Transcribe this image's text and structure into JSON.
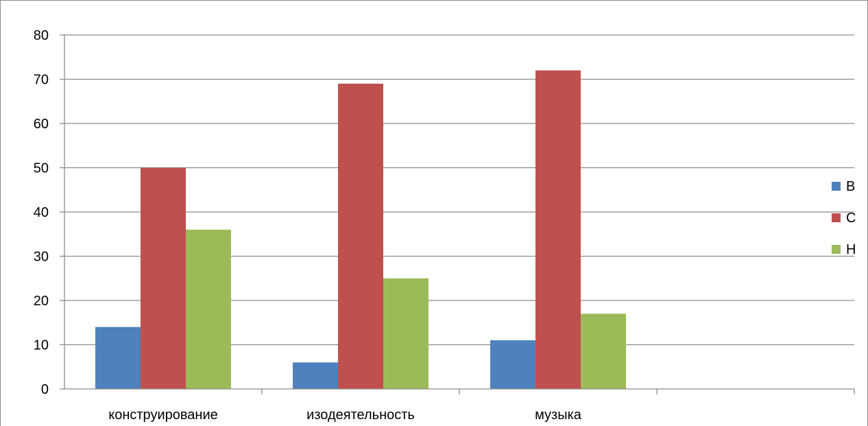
{
  "chart_data": {
    "type": "bar",
    "title": "",
    "xlabel": "",
    "ylabel": "",
    "categories": [
      "конструирование",
      "изодеятельность",
      "музыка",
      ""
    ],
    "series": [
      {
        "name": "В",
        "values": [
          14,
          6,
          11,
          null
        ],
        "color": "#4F81BD"
      },
      {
        "name": "С",
        "values": [
          50,
          69,
          72,
          null
        ],
        "color": "#C0504D"
      },
      {
        "name": "Н",
        "values": [
          36,
          25,
          17,
          null
        ],
        "color": "#9BBB59"
      }
    ],
    "ylim": [
      0,
      80
    ],
    "yticks": [
      0,
      10,
      20,
      30,
      40,
      50,
      60,
      70,
      80
    ],
    "grid": true,
    "legend_position": "right"
  }
}
